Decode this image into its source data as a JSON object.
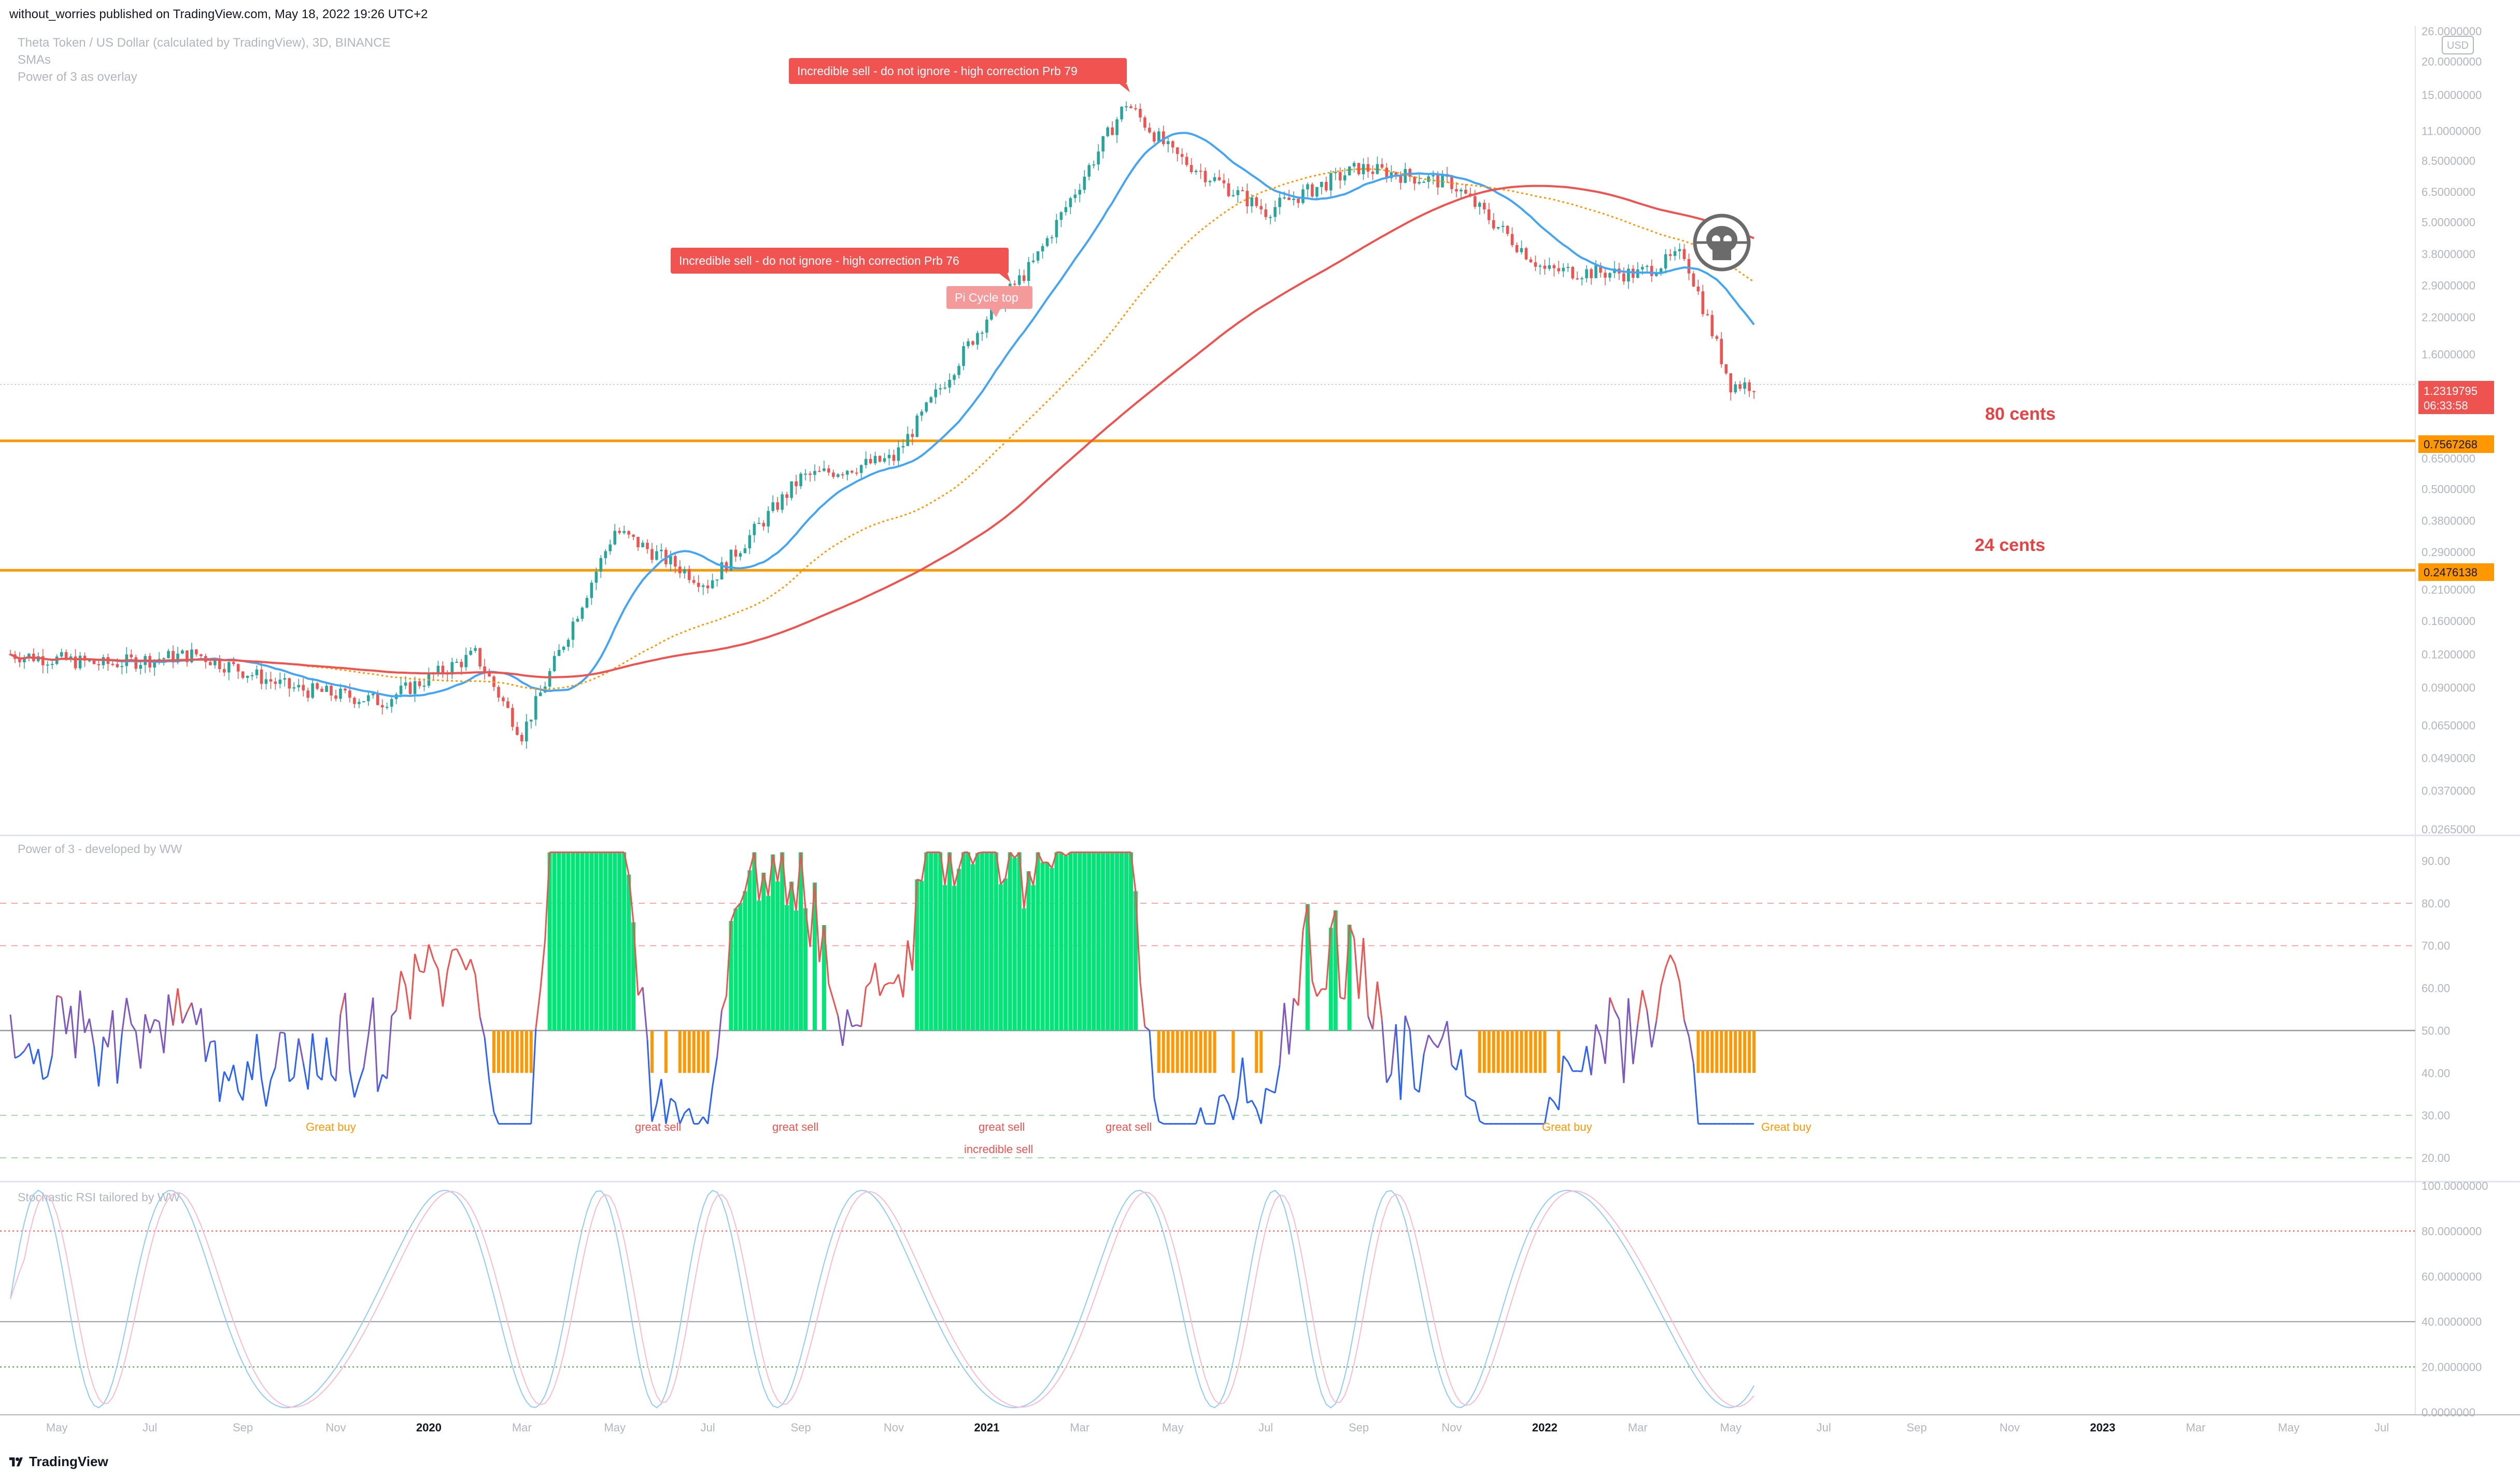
{
  "header": {
    "published_by": "without_worries published on TradingView.com, May 18, 2022 19:26 UTC+2"
  },
  "footer": {
    "brand": "TradingView"
  },
  "main_pane": {
    "legend": [
      "Theta Token / US Dollar (calculated by TradingView), 3D, BINANCE",
      "SMAs",
      "Power of 3 as overlay"
    ],
    "price_axis_labels": [
      "26.0000000",
      "20.0000000",
      "15.0000000",
      "11.0000000",
      "8.5000000",
      "6.5000000",
      "5.0000000",
      "3.8000000",
      "2.9000000",
      "2.2000000",
      "1.6000000",
      "0.6500000",
      "0.5000000",
      "0.3800000",
      "0.2900000",
      "0.2100000",
      "0.1600000",
      "0.1200000",
      "0.0900000",
      "0.0650000",
      "0.0490000",
      "0.0370000",
      "0.0265000"
    ],
    "currency_badge": "USD",
    "current_price": "1.2319795",
    "countdown": "06:33:58",
    "level_80": "0.7567268",
    "level_24": "0.2476138",
    "annotation_80": "80 cents",
    "annotation_24": "24 cents",
    "callout_top": "Incredible sell - do not ignore - high correction Prb   79",
    "callout_mid": "Incredible sell - do not ignore - high correction Prb   76",
    "callout_pi": "Pi Cycle top",
    "colors": {
      "up": "#26a69a",
      "down": "#ef5350",
      "sma_blue": "#42a5f5",
      "sma_red": "#ef5350",
      "sma_orange": "#ff9800",
      "level": "#ff9800"
    }
  },
  "osc_pane": {
    "title": "Power of 3 - developed by WW",
    "axis_labels": [
      "90.00",
      "80.00",
      "70.00",
      "60.00",
      "50.00",
      "40.00",
      "30.00",
      "20.00"
    ],
    "signals": [
      "Great buy",
      "great sell",
      "great sell",
      "great sell",
      "great sell",
      "Great buy",
      "Great buy"
    ],
    "incredible_sell": "incredible sell"
  },
  "stoch_pane": {
    "title": "Stochastic RSI tailored by WW",
    "axis_labels": [
      "100.0000000",
      "80.0000000",
      "60.0000000",
      "40.0000000",
      "20.0000000",
      "0.0000000"
    ]
  },
  "time_axis": {
    "labels": [
      "May",
      "Jul",
      "Sep",
      "Nov",
      "2020",
      "Mar",
      "May",
      "Jul",
      "Sep",
      "Nov",
      "2021",
      "Mar",
      "May",
      "Jul",
      "Sep",
      "Nov",
      "2022",
      "Mar",
      "May",
      "Jul",
      "Sep",
      "Nov",
      "2023",
      "Mar",
      "May",
      "Jul"
    ]
  },
  "chart_data": {
    "type": "candlestick",
    "title": "Theta Token / US Dollar (calculated by TradingView), 3D, BINANCE",
    "scale": "log",
    "y_unit": "USD",
    "x_range": [
      "2019-04",
      "2023-07"
    ],
    "ylim": [
      0.0265,
      26
    ],
    "approx_close_path": [
      {
        "date": "2019-04",
        "price": 0.12
      },
      {
        "date": "2019-06",
        "price": 0.11
      },
      {
        "date": "2019-08",
        "price": 0.12
      },
      {
        "date": "2019-10",
        "price": 0.09
      },
      {
        "date": "2019-12",
        "price": 0.08
      },
      {
        "date": "2020-02",
        "price": 0.12
      },
      {
        "date": "2020-03",
        "price": 0.06
      },
      {
        "date": "2020-05",
        "price": 0.35
      },
      {
        "date": "2020-07",
        "price": 0.22
      },
      {
        "date": "2020-09",
        "price": 0.55
      },
      {
        "date": "2020-11",
        "price": 0.65
      },
      {
        "date": "2021-01",
        "price": 2.2
      },
      {
        "date": "2021-02",
        "price": 3.5
      },
      {
        "date": "2021-04",
        "price": 14
      },
      {
        "date": "2021-05",
        "price": 9
      },
      {
        "date": "2021-07",
        "price": 5.5
      },
      {
        "date": "2021-09",
        "price": 8
      },
      {
        "date": "2021-11",
        "price": 7
      },
      {
        "date": "2022-01",
        "price": 3.3
      },
      {
        "date": "2022-03",
        "price": 3.2
      },
      {
        "date": "2022-04",
        "price": 3.8
      },
      {
        "date": "2022-05",
        "price": 1.23
      }
    ],
    "horizontal_levels": [
      0.7567268,
      0.2476138
    ],
    "series": [
      {
        "name": "SMAs",
        "color": "#42a5f5"
      },
      {
        "name": "Power of 3 as overlay",
        "color": "#ff9800"
      }
    ],
    "oscillator": {
      "name": "Power of 3 - developed by WW",
      "ylim": [
        15,
        95
      ],
      "reference_lines": [
        80,
        70,
        50,
        30,
        20
      ]
    },
    "stoch_rsi": {
      "name": "Stochastic RSI tailored by WW",
      "ylim": [
        0,
        100
      ],
      "reference_lines": [
        80,
        40,
        20
      ]
    }
  }
}
